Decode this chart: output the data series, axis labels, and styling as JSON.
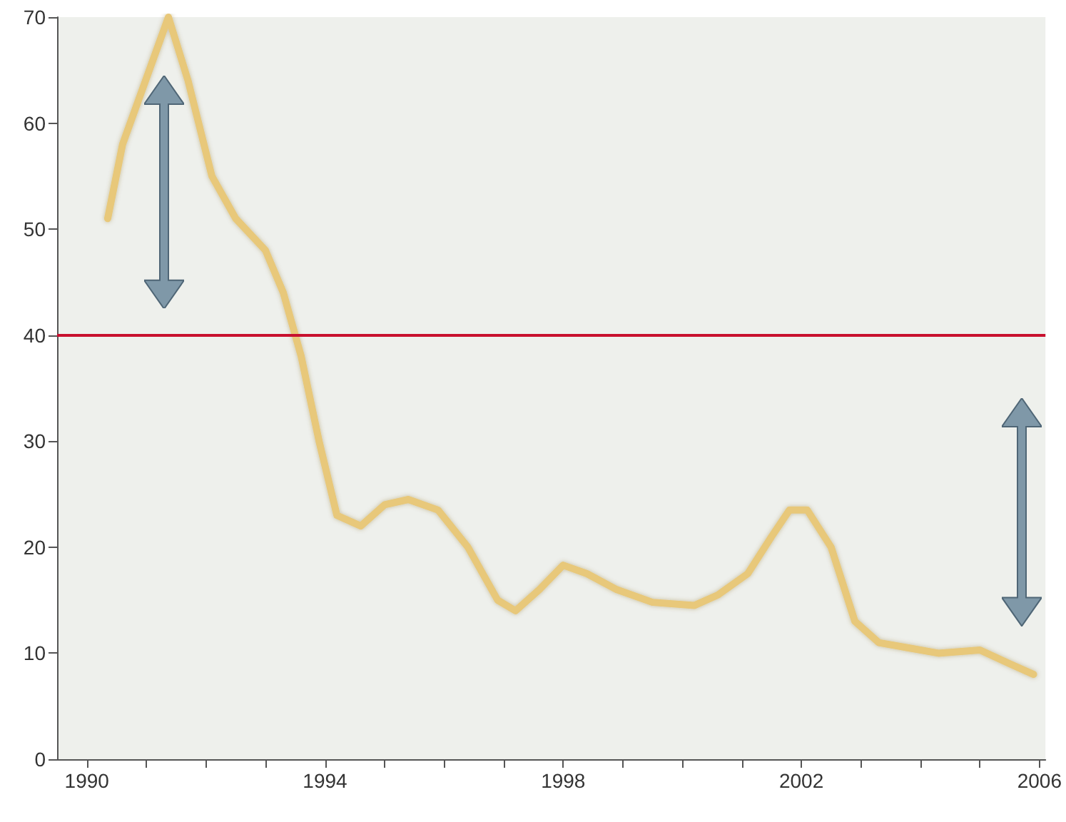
{
  "chart_data": {
    "type": "line",
    "x": [
      1990.35,
      1990.6,
      1991.37,
      1991.7,
      1992.1,
      1992.5,
      1993.0,
      1993.3,
      1993.6,
      1993.9,
      1994.2,
      1994.6,
      1995.0,
      1995.4,
      1995.9,
      1996.4,
      1996.9,
      1997.2,
      1997.6,
      1998.0,
      1998.4,
      1998.9,
      1999.5,
      2000.2,
      2000.6,
      2001.1,
      2001.5,
      2001.8,
      2002.1,
      2002.5,
      2002.9,
      2003.3,
      2003.8,
      2004.3,
      2005.0,
      2005.5,
      2005.9
    ],
    "series": [
      {
        "color": "#e8c87a",
        "values": [
          51,
          58,
          70,
          64,
          55,
          51,
          48,
          44,
          38,
          30,
          23,
          22,
          24,
          24.5,
          23.5,
          20,
          15,
          14,
          16,
          18.3,
          17.5,
          16,
          14.8,
          14.5,
          15.5,
          17.5,
          21,
          23.5,
          23.5,
          20,
          13,
          11,
          10.5,
          10,
          10.3,
          9,
          8
        ]
      }
    ],
    "xlim": [
      1989.5,
      2006.1
    ],
    "xticks": [
      1990,
      {
        "value": 1991,
        "label": null
      },
      {
        "value": 1992,
        "label": null
      },
      {
        "value": 1993,
        "label": null
      },
      1994,
      {
        "value": 1995,
        "label": null
      },
      {
        "value": 1996,
        "label": null
      },
      {
        "value": 1997,
        "label": null
      },
      1998,
      {
        "value": 1999,
        "label": null
      },
      {
        "value": 2000,
        "label": null
      },
      {
        "value": 2001,
        "label": null
      },
      2002,
      {
        "value": 2003,
        "label": null
      },
      {
        "value": 2004,
        "label": null
      },
      {
        "value": 2005,
        "label": null
      },
      2006
    ],
    "ylim": [
      0,
      70
    ],
    "yticks": [
      0,
      10,
      20,
      30,
      40,
      50,
      60,
      70
    ],
    "ref_lines": [
      {
        "axis": "y",
        "value": 40,
        "color": "#c8102e"
      }
    ],
    "grid": false,
    "marker": "none",
    "line_style": "solid"
  }
}
